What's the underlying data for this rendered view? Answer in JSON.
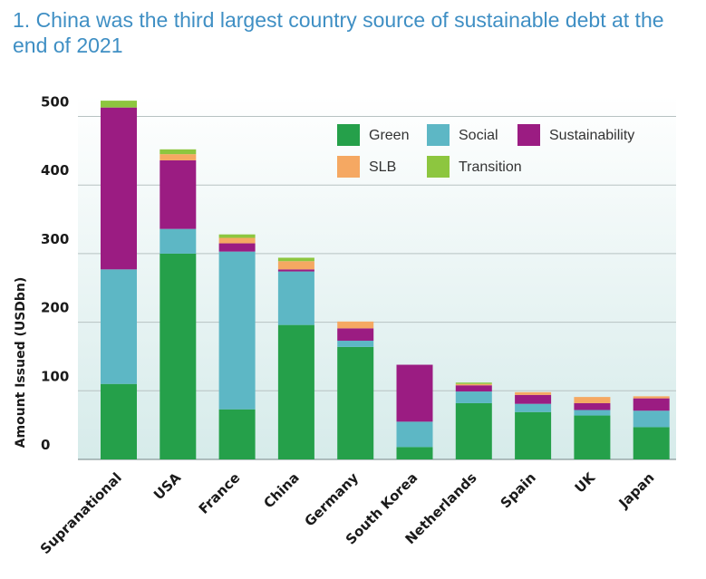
{
  "chart_data": {
    "type": "bar",
    "stacked": true,
    "title": "1. China was the third largest country source of sustainable debt at the end of 2021",
    "xlabel": "",
    "ylabel": "Amount Issued (USDbn)",
    "ylim": [
      0,
      520
    ],
    "yticks": [
      0,
      100,
      200,
      300,
      400,
      500
    ],
    "legend_position": "top-right",
    "categories": [
      "Supranational",
      "USA",
      "France",
      "China",
      "Germany",
      "South Korea",
      "Netherlands",
      "Spain",
      "UK",
      "Japan"
    ],
    "series": [
      {
        "name": "Green",
        "color": "#25a04a",
        "values": [
          110,
          300,
          73,
          196,
          164,
          18,
          82,
          69,
          64,
          47
        ]
      },
      {
        "name": "Social",
        "color": "#5db7c5",
        "values": [
          167,
          36,
          230,
          78,
          9,
          37,
          17,
          12,
          8,
          24
        ]
      },
      {
        "name": "Sustainability",
        "color": "#9b1c82",
        "values": [
          236,
          100,
          12,
          3,
          18,
          83,
          9,
          13,
          10,
          18
        ]
      },
      {
        "name": "SLB",
        "color": "#f5a862",
        "values": [
          0,
          9,
          8,
          12,
          10,
          0,
          2,
          4,
          9,
          3
        ]
      },
      {
        "name": "Transition",
        "color": "#8dc63f",
        "values": [
          10,
          7,
          5,
          5,
          0,
          0,
          2,
          0,
          0,
          0
        ]
      }
    ]
  }
}
